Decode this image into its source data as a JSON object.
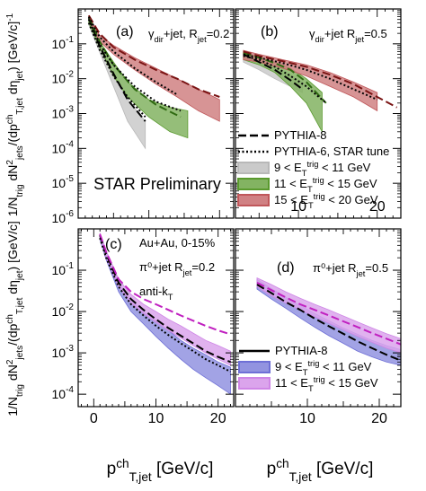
{
  "figure": {
    "ylabel_top": "1/N_trig dN²_jets/(dp^ch_T,jet dη_jet) [GeV/c]⁻¹",
    "ylabel_bottom": "1/N_trig dN²_jets/(dp^ch_T,jet dη_jet) [GeV/c]",
    "xlabel_left": "p^ch_T,jet [GeV/c]",
    "xlabel_right": "p^ch_T,jet [GeV/c]",
    "watermark": "STAR Preliminary"
  },
  "colors": {
    "gray": "#b8b8b8",
    "green": "#5a9a2e",
    "red": "#c0575a",
    "blue": "#6e6fd6",
    "violet": "#cf86e6",
    "magenta": "#c020c0",
    "watermark": "#e07878"
  },
  "chart_data": [
    {
      "type": "line",
      "panel": "(a)",
      "annotation": "γ_dir+jet, R_jet=0.2",
      "xlim": [
        0,
        22
      ],
      "ylim": [
        1e-06,
        1
      ],
      "yscale": "log",
      "xticks": [],
      "yticks": [
        "10^-6",
        "10^-5",
        "10^-4",
        "10^-3",
        "10^-2",
        "10^-1"
      ],
      "series": [
        {
          "name": "9 < E_T^trig < 11 GeV",
          "kind": "band",
          "color": "gray",
          "x": [
            1.5,
            3,
            5,
            7,
            9.5
          ],
          "lo": [
            0.35,
            0.06,
            0.006,
            0.0006,
            0.0001
          ],
          "hi": [
            0.5,
            0.09,
            0.012,
            0.0025,
            0.0006
          ]
        },
        {
          "name": "11 < E_T^trig < 15 GeV",
          "kind": "band",
          "color": "green",
          "x": [
            1.5,
            3,
            5,
            7,
            10,
            13,
            15.5
          ],
          "lo": [
            0.4,
            0.08,
            0.012,
            0.003,
            0.0008,
            0.0003,
            0.0002
          ],
          "hi": [
            0.55,
            0.12,
            0.03,
            0.008,
            0.0025,
            0.0015,
            0.0012
          ]
        },
        {
          "name": "15 < E_T^trig < 20 GeV",
          "kind": "band",
          "color": "red",
          "x": [
            1.5,
            3,
            5,
            8,
            11,
            14,
            17,
            20
          ],
          "lo": [
            0.5,
            0.12,
            0.05,
            0.018,
            0.007,
            0.003,
            0.0012,
            0.0006
          ],
          "hi": [
            0.6,
            0.18,
            0.09,
            0.04,
            0.02,
            0.01,
            0.005,
            0.0025
          ]
        },
        {
          "name": "PYTHIA-8",
          "kind": "line",
          "style": "dash",
          "color": "black",
          "x": [
            1.5,
            3,
            5,
            7,
            9.5
          ],
          "y": [
            0.55,
            0.09,
            0.014,
            0.0025,
            0.0006
          ]
        },
        {
          "name": "PYTHIA-6, STAR tune",
          "kind": "line",
          "style": "dot",
          "color": "black",
          "x": [
            1.5,
            3,
            5,
            7,
            9.5
          ],
          "y": [
            0.4,
            0.07,
            0.012,
            0.003,
            0.0008
          ]
        },
        {
          "name": "PYTHIA-8",
          "kind": "line",
          "style": "dash",
          "color": "green",
          "x": [
            1.5,
            3,
            5,
            8,
            11,
            14.5
          ],
          "y": [
            0.6,
            0.12,
            0.025,
            0.005,
            0.0018,
            0.0008
          ]
        },
        {
          "name": "PYTHIA-6, STAR tune",
          "kind": "line",
          "style": "dot",
          "color": "black",
          "x": [
            1.5,
            3,
            5,
            8,
            11,
            14.5
          ],
          "y": [
            0.5,
            0.1,
            0.025,
            0.006,
            0.0022,
            0.0012
          ]
        },
        {
          "name": "PYTHIA-8",
          "kind": "line",
          "style": "dash",
          "color": "darkred",
          "x": [
            1.5,
            3,
            5,
            8,
            11,
            14,
            17,
            20
          ],
          "y": [
            0.65,
            0.2,
            0.08,
            0.035,
            0.018,
            0.01,
            0.005,
            0.003
          ]
        },
        {
          "name": "PYTHIA-6, STAR tune",
          "kind": "line",
          "style": "dot",
          "color": "black",
          "x": [
            1.5,
            3,
            5,
            8,
            11,
            14
          ],
          "y": [
            0.6,
            0.16,
            0.06,
            0.02,
            0.008,
            0.0035
          ]
        }
      ]
    },
    {
      "type": "line",
      "panel": "(b)",
      "annotation": "γ_dir+jet  R_jet=0.5",
      "xlim": [
        2,
        23
      ],
      "ylim": [
        1e-06,
        1
      ],
      "yscale": "log",
      "xticks": [
        "10",
        "20"
      ],
      "series": [
        {
          "name": "9 < E_T^trig < 11 GeV",
          "kind": "band",
          "color": "gray",
          "x": [
            3,
            5,
            7,
            9,
            10.5
          ],
          "lo": [
            0.03,
            0.018,
            0.01,
            0.006,
            0.004
          ],
          "hi": [
            0.05,
            0.03,
            0.02,
            0.012,
            0.008
          ]
        },
        {
          "name": "11 < E_T^trig < 15 GeV",
          "kind": "band",
          "color": "green",
          "x": [
            3,
            5,
            7,
            9,
            11,
            13
          ],
          "lo": [
            0.035,
            0.025,
            0.015,
            0.006,
            0.002,
            0.0003
          ],
          "hi": [
            0.06,
            0.04,
            0.03,
            0.02,
            0.01,
            0.004
          ]
        },
        {
          "name": "15 < E_T^trig < 20 GeV",
          "kind": "band",
          "color": "red",
          "x": [
            3,
            5,
            8,
            11,
            14,
            17,
            20
          ],
          "lo": [
            0.035,
            0.03,
            0.02,
            0.012,
            0.006,
            0.003,
            0.0012
          ],
          "hi": [
            0.065,
            0.05,
            0.035,
            0.025,
            0.015,
            0.008,
            0.004
          ]
        },
        {
          "name": "PYTHIA-8",
          "kind": "line",
          "style": "dash",
          "color": "black",
          "x": [
            3,
            5,
            7,
            9,
            10.5
          ],
          "y": [
            0.05,
            0.03,
            0.018,
            0.009,
            0.005
          ]
        },
        {
          "name": "PYTHIA-8",
          "kind": "line",
          "style": "dash",
          "color": "green",
          "x": [
            3,
            5,
            7,
            9,
            11,
            13.5
          ],
          "y": [
            0.055,
            0.04,
            0.028,
            0.018,
            0.008,
            0.002
          ]
        },
        {
          "name": "PYTHIA-6, STAR tune",
          "kind": "line",
          "style": "dot",
          "color": "black",
          "x": [
            3,
            5,
            7,
            9,
            11,
            13.5
          ],
          "y": [
            0.045,
            0.035,
            0.022,
            0.012,
            0.006,
            0.002
          ]
        },
        {
          "name": "PYTHIA-8",
          "kind": "line",
          "style": "dash",
          "color": "darkred",
          "x": [
            3,
            5,
            8,
            11,
            14,
            17,
            20,
            22.5
          ],
          "y": [
            0.06,
            0.045,
            0.032,
            0.022,
            0.013,
            0.007,
            0.003,
            0.0015
          ]
        },
        {
          "name": "PYTHIA-6, STAR tune",
          "kind": "line",
          "style": "dot",
          "color": "black",
          "x": [
            3,
            5,
            8,
            11,
            14,
            17,
            20
          ],
          "y": [
            0.05,
            0.04,
            0.028,
            0.018,
            0.01,
            0.005,
            0.0025
          ]
        }
      ],
      "legend": {
        "position": "bottom-right",
        "entries": [
          {
            "label": "PYTHIA-8",
            "kind": "dash"
          },
          {
            "label": "PYTHIA-6, STAR tune",
            "kind": "dot"
          },
          {
            "label": "9 < E_T^trig < 11 GeV",
            "kind": "band",
            "color": "gray"
          },
          {
            "label": "11 < E_T^trig < 15 GeV",
            "kind": "band",
            "color": "green"
          },
          {
            "label": "15 < E_T^trig < 20 GeV",
            "kind": "band",
            "color": "red"
          }
        ]
      }
    },
    {
      "type": "line",
      "panel": "(c)",
      "annotation": [
        "Au+Au, 0-15%",
        "π⁰+jet  R_jet=0.2",
        "anti-k_T"
      ],
      "xlim": [
        -2.5,
        22.5
      ],
      "ylim": [
        5e-05,
        1
      ],
      "yscale": "log",
      "xticks": [
        "0",
        "10",
        "20"
      ],
      "yticks": [
        "10^-4",
        "10^-3",
        "10^-2",
        "10^-1"
      ],
      "series": [
        {
          "name": "9 < E_T^trig < 11 GeV",
          "kind": "band",
          "color": "blue",
          "x": [
            1,
            2,
            4,
            6,
            8,
            10,
            12,
            14,
            16,
            18,
            20,
            22
          ],
          "lo": [
            0.55,
            0.18,
            0.03,
            0.01,
            0.005,
            0.0025,
            0.0013,
            0.0007,
            0.0004,
            0.00025,
            0.00016,
            0.0001
          ],
          "hi": [
            0.75,
            0.26,
            0.05,
            0.019,
            0.01,
            0.006,
            0.0035,
            0.002,
            0.0013,
            0.0009,
            0.0006,
            0.00045
          ]
        },
        {
          "name": "11 < E_T^trig < 15 GeV",
          "kind": "band",
          "color": "violet",
          "x": [
            1,
            2,
            4,
            6,
            8,
            10,
            12,
            14,
            16,
            18,
            20,
            22
          ],
          "lo": [
            0.6,
            0.2,
            0.04,
            0.016,
            0.009,
            0.0055,
            0.0035,
            0.0023,
            0.0015,
            0.001,
            0.0007,
            0.0005
          ],
          "hi": [
            0.8,
            0.3,
            0.06,
            0.026,
            0.015,
            0.01,
            0.0065,
            0.0045,
            0.003,
            0.002,
            0.0015,
            0.0011
          ]
        },
        {
          "name": "PYTHIA-8",
          "kind": "line",
          "style": "dash",
          "color": "black",
          "x": [
            1,
            2,
            4,
            6,
            8,
            10,
            12,
            14,
            16,
            18,
            20,
            22
          ],
          "y": [
            0.7,
            0.25,
            0.05,
            0.02,
            0.011,
            0.0065,
            0.004,
            0.0026,
            0.0017,
            0.0011,
            0.0008,
            0.0006
          ]
        },
        {
          "name": "PYTHIA-8",
          "kind": "line",
          "style": "dash",
          "color": "magenta",
          "x": [
            1,
            2,
            4,
            6,
            8,
            10,
            12,
            14,
            16,
            18,
            20,
            22
          ],
          "y": [
            0.75,
            0.28,
            0.06,
            0.03,
            0.02,
            0.015,
            0.011,
            0.008,
            0.006,
            0.0045,
            0.0035,
            0.0028
          ]
        },
        {
          "name": "PYTHIA-6, STAR tune",
          "kind": "line",
          "style": "dot",
          "color": "black",
          "x": [
            1,
            2,
            4,
            6,
            8,
            10,
            12,
            14,
            16,
            18,
            20,
            22
          ],
          "y": [
            0.6,
            0.2,
            0.04,
            0.015,
            0.008,
            0.0045,
            0.0027,
            0.0017,
            0.0011,
            0.0007,
            0.0005,
            0.00035
          ]
        }
      ]
    },
    {
      "type": "line",
      "panel": "(d)",
      "annotation": "π⁰+jet  R_jet=0.5",
      "xlim": [
        0,
        23
      ],
      "ylim": [
        5e-05,
        1
      ],
      "yscale": "log",
      "xticks": [
        "10",
        "20"
      ],
      "series": [
        {
          "name": "9 < E_T^trig < 11 GeV",
          "kind": "band",
          "color": "blue",
          "x": [
            3,
            5,
            7,
            9,
            11,
            13,
            15,
            17,
            19,
            21,
            23
          ],
          "lo": [
            0.035,
            0.02,
            0.012,
            0.007,
            0.0042,
            0.0026,
            0.0017,
            0.0011,
            0.0008,
            0.0006,
            0.0005
          ],
          "hi": [
            0.06,
            0.036,
            0.022,
            0.014,
            0.009,
            0.006,
            0.004,
            0.0028,
            0.002,
            0.0015,
            0.0012
          ]
        },
        {
          "name": "11 < E_T^trig < 15 GeV",
          "kind": "band",
          "color": "violet",
          "x": [
            3,
            5,
            7,
            9,
            11,
            13,
            15,
            17,
            19,
            21,
            23
          ],
          "lo": [
            0.04,
            0.024,
            0.016,
            0.011,
            0.0075,
            0.0052,
            0.0036,
            0.0025,
            0.0018,
            0.0013,
            0.001
          ],
          "hi": [
            0.065,
            0.045,
            0.03,
            0.021,
            0.015,
            0.011,
            0.0078,
            0.0056,
            0.004,
            0.0029,
            0.0022
          ]
        },
        {
          "name": "PYTHIA-8",
          "kind": "line",
          "style": "dash",
          "color": "black",
          "x": [
            3,
            5,
            7,
            9,
            11,
            13,
            15,
            17,
            19,
            21,
            23
          ],
          "y": [
            0.045,
            0.028,
            0.017,
            0.011,
            0.0068,
            0.0044,
            0.0029,
            0.0019,
            0.0013,
            0.0009,
            0.00065
          ]
        },
        {
          "name": "PYTHIA-8",
          "kind": "line",
          "style": "dash",
          "color": "magenta",
          "x": [
            3,
            5,
            7,
            9,
            11,
            13,
            15,
            17,
            19,
            21,
            23
          ],
          "y": [
            0.05,
            0.033,
            0.022,
            0.015,
            0.011,
            0.008,
            0.0058,
            0.0042,
            0.003,
            0.0022,
            0.0016
          ]
        }
      ],
      "legend": {
        "position": "bottom-right",
        "entries": [
          {
            "label": "PYTHIA-8",
            "kind": "solid"
          },
          {
            "label": "9 < E_T^trig < 11 GeV",
            "kind": "band",
            "color": "blue"
          },
          {
            "label": "11 < E_T^trig < 15 GeV",
            "kind": "band",
            "color": "violet"
          }
        ]
      }
    }
  ]
}
